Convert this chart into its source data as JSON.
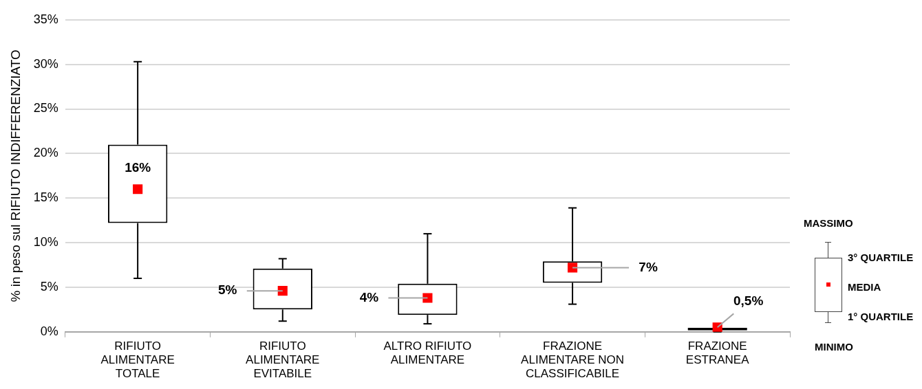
{
  "chart_data": {
    "type": "box",
    "ylabel": "% in peso sul RIFIUTO INDIFFERENZIATO",
    "categories": [
      "RIFIUTO ALIMENTARE TOTALE",
      "RIFIUTO ALIMENTARE EVITABILE",
      "ALTRO RIFIUTO ALIMENTARE",
      "FRAZIONE ALIMENTARE NON CLASSIFICABILE",
      "FRAZIONE ESTRANEA"
    ],
    "boxes": [
      {
        "low": 6.0,
        "q1": 12.2,
        "median": null,
        "q3": 21.0,
        "high": 30.3
      },
      {
        "low": 1.2,
        "q1": 2.5,
        "median": null,
        "q3": 7.1,
        "high": 8.2
      },
      {
        "low": 0.9,
        "q1": 1.9,
        "median": null,
        "q3": 5.4,
        "high": 11.0
      },
      {
        "low": 3.1,
        "q1": 5.5,
        "median": null,
        "q3": 7.9,
        "high": 13.9
      },
      {
        "low": 0.0,
        "q1": 0.15,
        "median": null,
        "q3": 0.45,
        "high": 0.7
      }
    ],
    "series": [
      {
        "type": "scatter",
        "color": "#ff0000",
        "x": [
          "RIFIUTO ALIMENTARE TOTALE",
          "RIFIUTO ALIMENTARE EVITABILE",
          "ALTRO RIFIUTO ALIMENTARE",
          "FRAZIONE ALIMENTARE NON CLASSIFICABILE",
          "FRAZIONE ESTRANEA"
        ],
        "values": [
          16.0,
          4.6,
          3.8,
          7.2,
          0.5
        ],
        "value_labels": [
          "16%",
          "5%",
          "4%",
          "7%",
          "0,5%"
        ],
        "marker": "square"
      }
    ],
    "ylim": [
      0,
      35
    ],
    "yticks": [
      {
        "value": 0,
        "label": "0%"
      },
      {
        "value": 5,
        "label": "5%"
      },
      {
        "value": 10,
        "label": "10%"
      },
      {
        "value": 15,
        "label": "15%"
      },
      {
        "value": 20,
        "label": "20%"
      },
      {
        "value": 25,
        "label": "25%"
      },
      {
        "value": 30,
        "label": "30%"
      },
      {
        "value": 35,
        "label": "35%"
      }
    ],
    "grid": "y",
    "legend": false,
    "annotations": [
      "MASSIMO",
      "3° QUARTILE",
      "MEDIA",
      "1° QUARTILE",
      "MINIMO"
    ]
  }
}
